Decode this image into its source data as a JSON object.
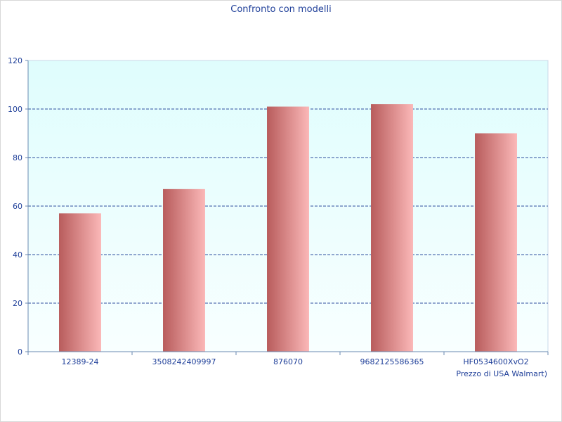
{
  "chart_data": {
    "type": "bar",
    "title": "Confronto con modelli",
    "xlabel": "Prezzo di USA Walmart)",
    "ylabel": "",
    "categories": [
      "12389-24",
      "3508242409997",
      "876070",
      "9682125586365",
      "HF0534600XvO2"
    ],
    "values": [
      57,
      67,
      101,
      102,
      90
    ],
    "ylim": [
      0,
      120
    ],
    "yticks": [
      0,
      20,
      40,
      60,
      80,
      100,
      120
    ],
    "grid": true,
    "legend": "none",
    "colors": {
      "bar_dark": "#b85c5c",
      "bar_light": "#fbb8b8",
      "plot_bg_top": "#dffdfd",
      "plot_bg_bottom": "#f8ffff",
      "grid": "#2f4f9f",
      "text": "#1f3f99"
    }
  }
}
